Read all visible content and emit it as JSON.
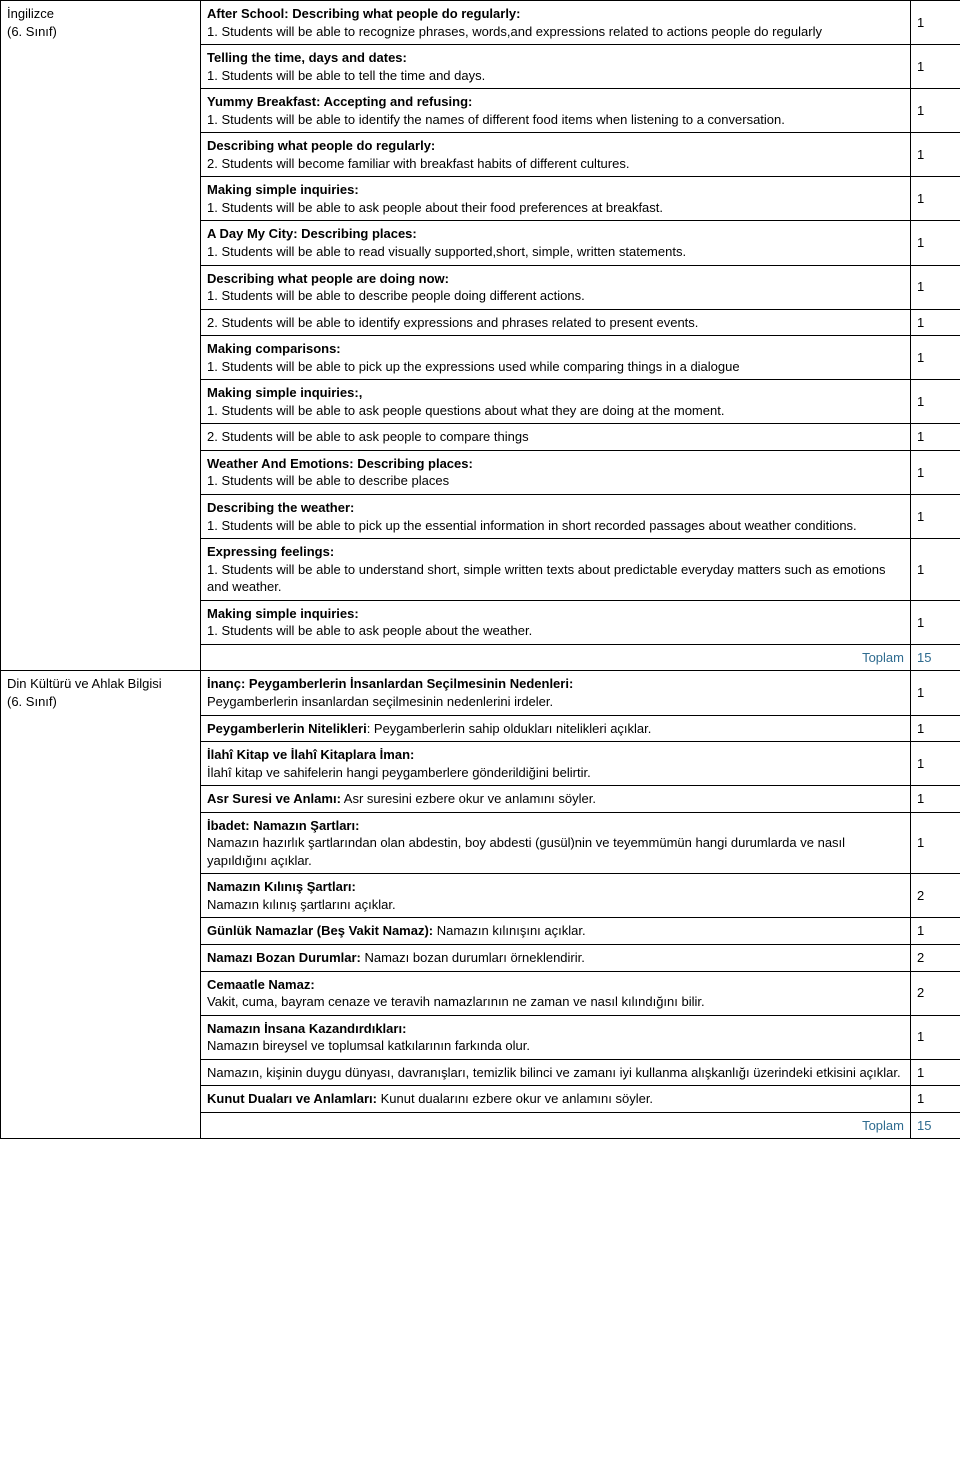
{
  "subjects": [
    {
      "name": "İngilizce\n(6. Sınıf)",
      "rows": [
        {
          "title": "After School: Describing what people do regularly:",
          "body": "1. Students will be able to recognize phrases, words,and expressions related to actions people do regularly",
          "count": "1"
        },
        {
          "title": "Telling the time, days and dates:",
          "body": "1. Students will be able to tell the time and days.",
          "count": "1"
        },
        {
          "title": "Yummy Breakfast:  Accepting and refusing:",
          "body": "1. Students will be able to identify the names of different food items when listening to a conversation.",
          "count": "1"
        },
        {
          "title": "Describing what people do regularly:",
          "body": "2. Students will become familiar with breakfast habits of different cultures.",
          "count": "1"
        },
        {
          "title": "Making simple inquiries:",
          "body": "1. Students will be able to ask people about their food preferences at breakfast.",
          "count": "1"
        },
        {
          "title": "A Day My City: Describing places:",
          "body": "1. Students will be able to read visually supported,short, simple, written statements.",
          "count": "1"
        },
        {
          "title": "Describing what people are doing now:",
          "body": "1. Students will be able to describe people doing different actions.",
          "count": "1"
        },
        {
          "title": "",
          "body": "2. Students will be able to identify expressions and phrases related to present events.",
          "count": "1"
        },
        {
          "title": "Making comparisons:",
          "body": "1. Students will be able to pick up the expressions used while comparing things in a dialogue",
          "count": "1"
        },
        {
          "title": "Making simple inquiries:,",
          "body": "1. Students will be able to ask people questions about what they are doing at the moment.",
          "count": "1"
        },
        {
          "title": "",
          "body": "2. Students will be able to ask people to compare things",
          "count": "1"
        },
        {
          "title": "Weather And Emotions: Describing places:",
          "body": "1. Students will be able to describe places",
          "count": "1"
        },
        {
          "title": "Describing the weather:",
          "body": "1. Students will be able to pick up the essential information in short recorded passages about weather conditions.",
          "count": "1"
        },
        {
          "title": "Expressing feelings:",
          "body": "1. Students will be able to understand short, simple written texts about predictable everyday matters such as emotions and weather.",
          "count": "1"
        },
        {
          "title": "Making simple inquiries:",
          "body": "1. Students will be able to ask people about the weather.",
          "count": "1"
        }
      ],
      "total_label": "Toplam",
      "total": "15"
    },
    {
      "name": "Din Kültürü ve Ahlak Bilgisi\n(6. Sınıf)",
      "rows": [
        {
          "title": "İnanç: Peygamberlerin İnsanlardan Seçilmesinin Nedenleri:",
          "body": "Peygamberlerin insanlardan seçilmesinin nedenlerini irdeler.",
          "count": "1"
        },
        {
          "title_inline": "Peygamberlerin Nitelikleri",
          "body": ": Peygamberlerin sahip oldukları nitelikleri açıklar.",
          "count": "1"
        },
        {
          "title": "İlahî Kitap ve İlahî Kitaplara İman:",
          "body": "İlahî kitap ve sahifelerin hangi peygamberlere gönderildiğini belirtir.",
          "count": "1"
        },
        {
          "title_inline": "Asr Suresi ve Anlamı:",
          "body": " Asr suresini ezbere okur ve anlamını söyler.",
          "count": "1"
        },
        {
          "title": "İbadet: Namazın Şartları:",
          "body": "Namazın hazırlık şartlarından olan abdestin, boy abdesti (gusül)nin ve teyemmümün hangi durumlarda ve nasıl yapıldığını açıklar.",
          "count": "1"
        },
        {
          "title": "Namazın Kılınış Şartları:",
          "body": "Namazın kılınış şartlarını açıklar.",
          "count": "2"
        },
        {
          "title_inline": "Günlük Namazlar (Beş Vakit Namaz):",
          "body": " Namazın kılınışını açıklar.",
          "count": "1"
        },
        {
          "title_inline": "Namazı Bozan Durumlar:",
          "body": " Namazı bozan durumları örneklendirir.",
          "count": "2"
        },
        {
          "title": "Cemaatle Namaz:",
          "body": "Vakit, cuma, bayram cenaze ve teravih namazlarının ne zaman ve nasıl kılındığını bilir.",
          "count": "2"
        },
        {
          "title": "Namazın İnsana Kazandırdıkları:",
          "body": "Namazın bireysel ve toplumsal katkılarının farkında olur.",
          "count": "1"
        },
        {
          "title": "",
          "body": "Namazın, kişinin duygu dünyası, davranışları, temizlik bilinci ve zamanı iyi kullanma alışkanlığı üzerindeki etkisini açıklar.",
          "count": "1"
        },
        {
          "title_inline": "Kunut Duaları ve Anlamları:",
          "body": " Kunut dualarını ezbere okur ve anlamını söyler.",
          "count": "1"
        }
      ],
      "total_label": "Toplam",
      "total": "15"
    }
  ]
}
